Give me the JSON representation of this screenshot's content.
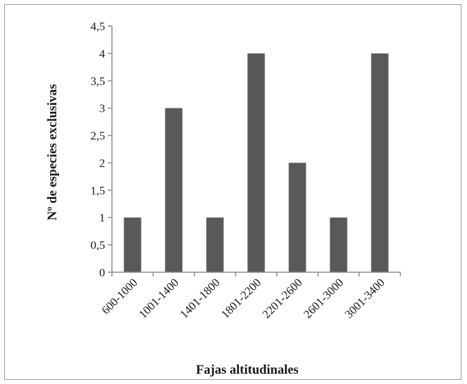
{
  "chart_data": {
    "type": "bar",
    "title": "",
    "xlabel": "Fajas altitudinales",
    "ylabel": "Nº de especies exclusivas",
    "categories": [
      "600-1000",
      "1001-1400",
      "1401-1800",
      "1801-2200",
      "2201-2600",
      "2601-3000",
      "3001-3400"
    ],
    "values": [
      1,
      3,
      1,
      4,
      2,
      1,
      4
    ],
    "ylim": [
      0,
      4.5
    ],
    "yticks": [
      0,
      0.5,
      1,
      1.5,
      2,
      2.5,
      3,
      3.5,
      4,
      4.5
    ],
    "ytick_labels": [
      "0",
      "0,5",
      "1",
      "1,5",
      "2",
      "2,5",
      "3",
      "3,5",
      "4",
      "4,5"
    ],
    "grid": false,
    "legend": "none",
    "bar_color": "#595959"
  }
}
